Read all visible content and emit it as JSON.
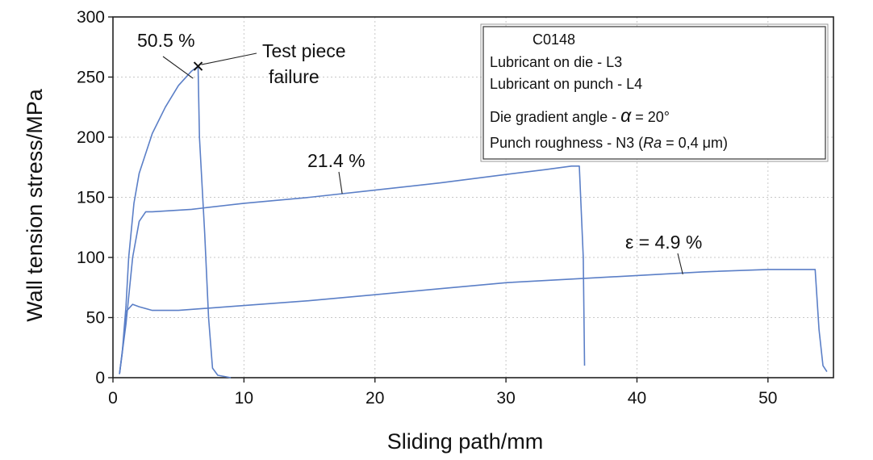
{
  "chart_data": {
    "type": "line",
    "title": "",
    "xlabel": "Sliding path/mm",
    "ylabel": "Wall tension stress/MPa",
    "xlim": [
      0,
      55
    ],
    "ylim": [
      0,
      300
    ],
    "x_ticks": [
      0,
      10,
      20,
      30,
      40,
      50
    ],
    "y_ticks": [
      0,
      50,
      100,
      150,
      200,
      250,
      300
    ],
    "grid": true,
    "line_color": "#5b7fc7",
    "series": [
      {
        "x": [
          0.5,
          0.7,
          1.0,
          1.2,
          1.6,
          2.0,
          3.0,
          4.0,
          5.0,
          6.0,
          6.5,
          6.6,
          7.0,
          7.3,
          7.6,
          8.0,
          9.0
        ],
        "y": [
          3,
          20,
          60,
          100,
          145,
          170,
          203,
          225,
          243,
          255,
          259,
          200,
          120,
          50,
          8,
          2,
          0
        ]
      },
      {
        "x": [
          0.5,
          1.0,
          1.5,
          2.0,
          2.5,
          3.0,
          6.0,
          10.0,
          15.0,
          20.0,
          25.0,
          30.0,
          33.0,
          35.0,
          35.6,
          35.9,
          36.0
        ],
        "y": [
          3,
          45,
          100,
          130,
          138,
          138,
          140,
          145,
          150,
          156,
          162,
          169,
          173,
          176,
          176,
          100,
          10
        ]
      },
      {
        "x": [
          0.5,
          0.8,
          1.0,
          1.5,
          2.0,
          3.0,
          5.0,
          10.0,
          15.0,
          20.0,
          25.0,
          30.0,
          35.0,
          40.0,
          45.0,
          50.0,
          53.0,
          53.6,
          53.9,
          54.2,
          54.5
        ],
        "y": [
          3,
          30,
          55,
          61,
          59,
          56,
          56,
          60,
          64,
          69,
          74,
          79,
          82,
          85,
          88,
          90,
          90,
          90,
          40,
          10,
          5
        ]
      }
    ],
    "annotations": [
      {
        "text": "50.5 %",
        "x": 6.3,
        "y": 253
      },
      {
        "text": "21.4 %",
        "x": 17.5,
        "y": 153
      },
      {
        "text": "ε = 4.9 %",
        "x": 43.5,
        "y": 86
      },
      {
        "text_lines": [
          "Test piece",
          "failure"
        ],
        "x": 6.5,
        "y": 259
      }
    ],
    "failure_marker": {
      "x": 6.5,
      "y": 259
    },
    "legend_position": "top-right",
    "legend": [
      {
        "text": "C0148"
      },
      {
        "text": "Lubricant on die - L3"
      },
      {
        "text": "Lubricant on punch - L4"
      },
      {
        "prefix": "Die gradient angle - ",
        "symbol": "α",
        "suffix": " = 20°"
      },
      {
        "prefix": "Punch roughness - N3 (",
        "italic": "Ra",
        "suffix": " = 0,4 μm)"
      }
    ]
  }
}
